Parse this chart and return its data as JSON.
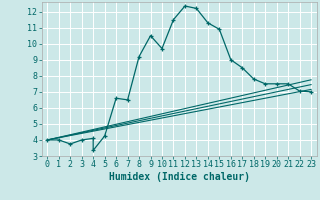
{
  "title": "",
  "xlabel": "Humidex (Indice chaleur)",
  "bg_color": "#cce8e8",
  "grid_color": "#ffffff",
  "line_color": "#006868",
  "xlim": [
    -0.5,
    23.5
  ],
  "ylim": [
    3,
    12.6
  ],
  "xticks": [
    0,
    1,
    2,
    3,
    4,
    5,
    6,
    7,
    8,
    9,
    10,
    11,
    12,
    13,
    14,
    15,
    16,
    17,
    18,
    19,
    20,
    21,
    22,
    23
  ],
  "yticks": [
    3,
    4,
    5,
    6,
    7,
    8,
    9,
    10,
    11,
    12
  ],
  "main_x": [
    0,
    1,
    2,
    3,
    4,
    4,
    5,
    6,
    7,
    8,
    9,
    10,
    11,
    12,
    13,
    14,
    15,
    16,
    17,
    18,
    19,
    20,
    21,
    22,
    23
  ],
  "main_y": [
    4.0,
    4.0,
    3.75,
    4.0,
    4.1,
    3.35,
    4.25,
    6.6,
    6.5,
    9.2,
    10.5,
    9.7,
    11.5,
    12.35,
    12.2,
    11.3,
    10.9,
    9.0,
    8.5,
    7.8,
    7.5,
    7.5,
    7.5,
    7.05,
    7.0
  ],
  "line2_x": [
    0,
    23
  ],
  "line2_y": [
    4.0,
    7.15
  ],
  "line3_x": [
    0,
    23
  ],
  "line3_y": [
    4.0,
    7.45
  ],
  "line4_x": [
    0,
    23
  ],
  "line4_y": [
    4.0,
    7.75
  ],
  "xlabel_fontsize": 7,
  "tick_fontsize": 6
}
